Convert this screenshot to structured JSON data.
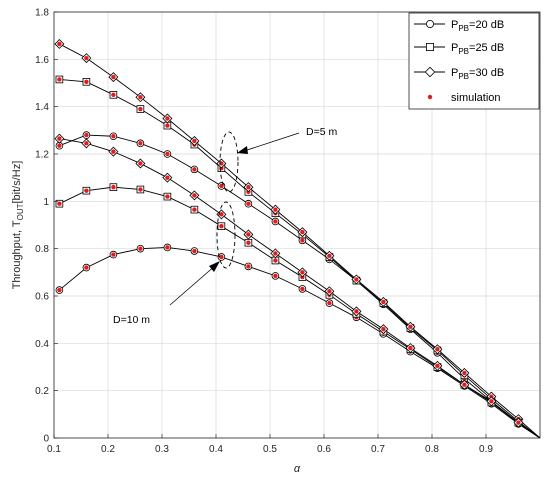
{
  "chart_data": {
    "type": "line",
    "xlabel": "α",
    "ylabel_main": "Throughput, T",
    "ylabel_sub": "OUT",
    "ylabel_tail": "[bit/s/Hz]",
    "xlim": [
      0.1,
      1.0
    ],
    "ylim": [
      0,
      1.8
    ],
    "xticks": [
      "0.1",
      "0.2",
      "0.3",
      "0.4",
      "0.5",
      "0.6",
      "0.7",
      "0.8",
      "0.9"
    ],
    "yticks": [
      "0",
      "0.2",
      "0.4",
      "0.6",
      "0.8",
      "1",
      "1.2",
      "1.4",
      "1.6",
      "1.8"
    ],
    "grid": true,
    "legend_position": "top-right",
    "legend": [
      {
        "marker": "circle",
        "main": "P",
        "sub": "PB",
        "tail": "=20 dB"
      },
      {
        "marker": "square",
        "main": "P",
        "sub": "PB",
        "tail": "=25 dB"
      },
      {
        "marker": "diamond",
        "main": "P",
        "sub": "PB",
        "tail": "=30 dB"
      },
      {
        "marker": "dot",
        "main": "simulation",
        "sub": "",
        "tail": ""
      }
    ],
    "annotations": [
      "D=5 m",
      "D=10 m"
    ],
    "x": [
      0.11,
      0.16,
      0.21,
      0.26,
      0.31,
      0.36,
      0.41,
      0.46,
      0.51,
      0.56,
      0.61,
      0.66,
      0.71,
      0.76,
      0.81,
      0.86,
      0.91,
      0.96
    ],
    "series": [
      {
        "group": "D=5 m",
        "marker": "circle",
        "values": [
          1.235,
          1.28,
          1.275,
          1.245,
          1.2,
          1.135,
          1.065,
          0.99,
          0.915,
          0.835,
          0.755,
          0.665,
          0.565,
          0.46,
          0.36,
          0.25,
          0.155,
          0.06
        ]
      },
      {
        "group": "D=5 m",
        "marker": "square",
        "values": [
          1.515,
          1.505,
          1.45,
          1.39,
          1.32,
          1.24,
          1.14,
          1.04,
          0.95,
          0.86,
          0.765,
          0.665,
          0.57,
          0.465,
          0.37,
          0.265,
          0.165,
          0.07
        ]
      },
      {
        "group": "D=5 m",
        "marker": "diamond",
        "values": [
          1.665,
          1.605,
          1.525,
          1.44,
          1.35,
          1.255,
          1.16,
          1.06,
          0.965,
          0.87,
          0.77,
          0.67,
          0.575,
          0.47,
          0.375,
          0.275,
          0.175,
          0.08
        ]
      },
      {
        "group": "D=10 m",
        "marker": "circle",
        "values": [
          0.625,
          0.72,
          0.775,
          0.8,
          0.805,
          0.79,
          0.765,
          0.725,
          0.685,
          0.63,
          0.57,
          0.51,
          0.44,
          0.365,
          0.295,
          0.22,
          0.145,
          0.06
        ]
      },
      {
        "group": "D=10 m",
        "marker": "square",
        "values": [
          0.99,
          1.045,
          1.06,
          1.05,
          1.02,
          0.965,
          0.895,
          0.825,
          0.75,
          0.68,
          0.605,
          0.525,
          0.45,
          0.375,
          0.3,
          0.225,
          0.15,
          0.065
        ]
      },
      {
        "group": "D=10 m",
        "marker": "diamond",
        "values": [
          1.265,
          1.245,
          1.21,
          1.16,
          1.1,
          1.025,
          0.945,
          0.86,
          0.78,
          0.7,
          0.62,
          0.535,
          0.46,
          0.38,
          0.305,
          0.225,
          0.155,
          0.065
        ]
      }
    ],
    "colors": {
      "line": "#000000",
      "marker_stroke": "#000000",
      "marker_fill": "#ffffff",
      "simulation": "#e21b1b",
      "grid": "#d9d9d9"
    }
  }
}
